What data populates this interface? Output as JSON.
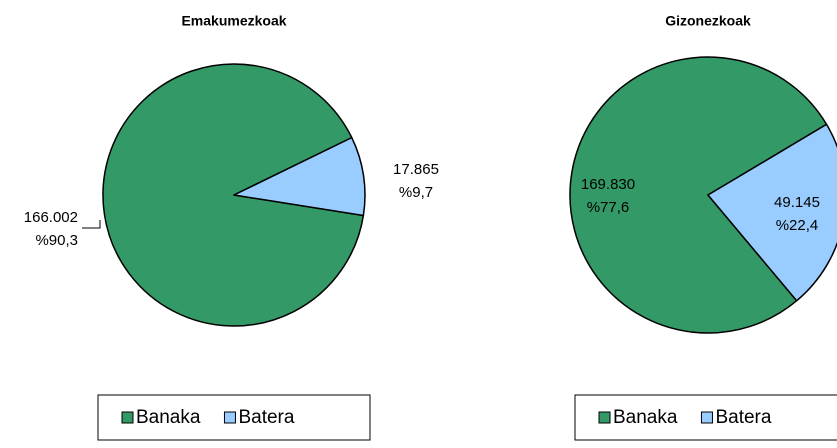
{
  "chart_data": [
    {
      "type": "pie",
      "title": "Emakumezkoak",
      "categories": [
        "Banaka",
        "Batera"
      ],
      "values": [
        166002,
        17865
      ],
      "value_labels": [
        "166.002",
        "17.865"
      ],
      "percents": [
        90.3,
        9.7
      ],
      "percent_labels": [
        "%90,3",
        "%9,7"
      ],
      "colors": [
        "#339966",
        "#99ccff"
      ]
    },
    {
      "type": "pie",
      "title": "Gizonezkoak",
      "categories": [
        "Banaka",
        "Batera"
      ],
      "values": [
        169830,
        49145
      ],
      "value_labels": [
        "169.830",
        "49.145"
      ],
      "percents": [
        77.6,
        22.4
      ],
      "percent_labels": [
        "%77,6",
        "%22,4"
      ],
      "colors": [
        "#339966",
        "#99ccff"
      ]
    }
  ]
}
